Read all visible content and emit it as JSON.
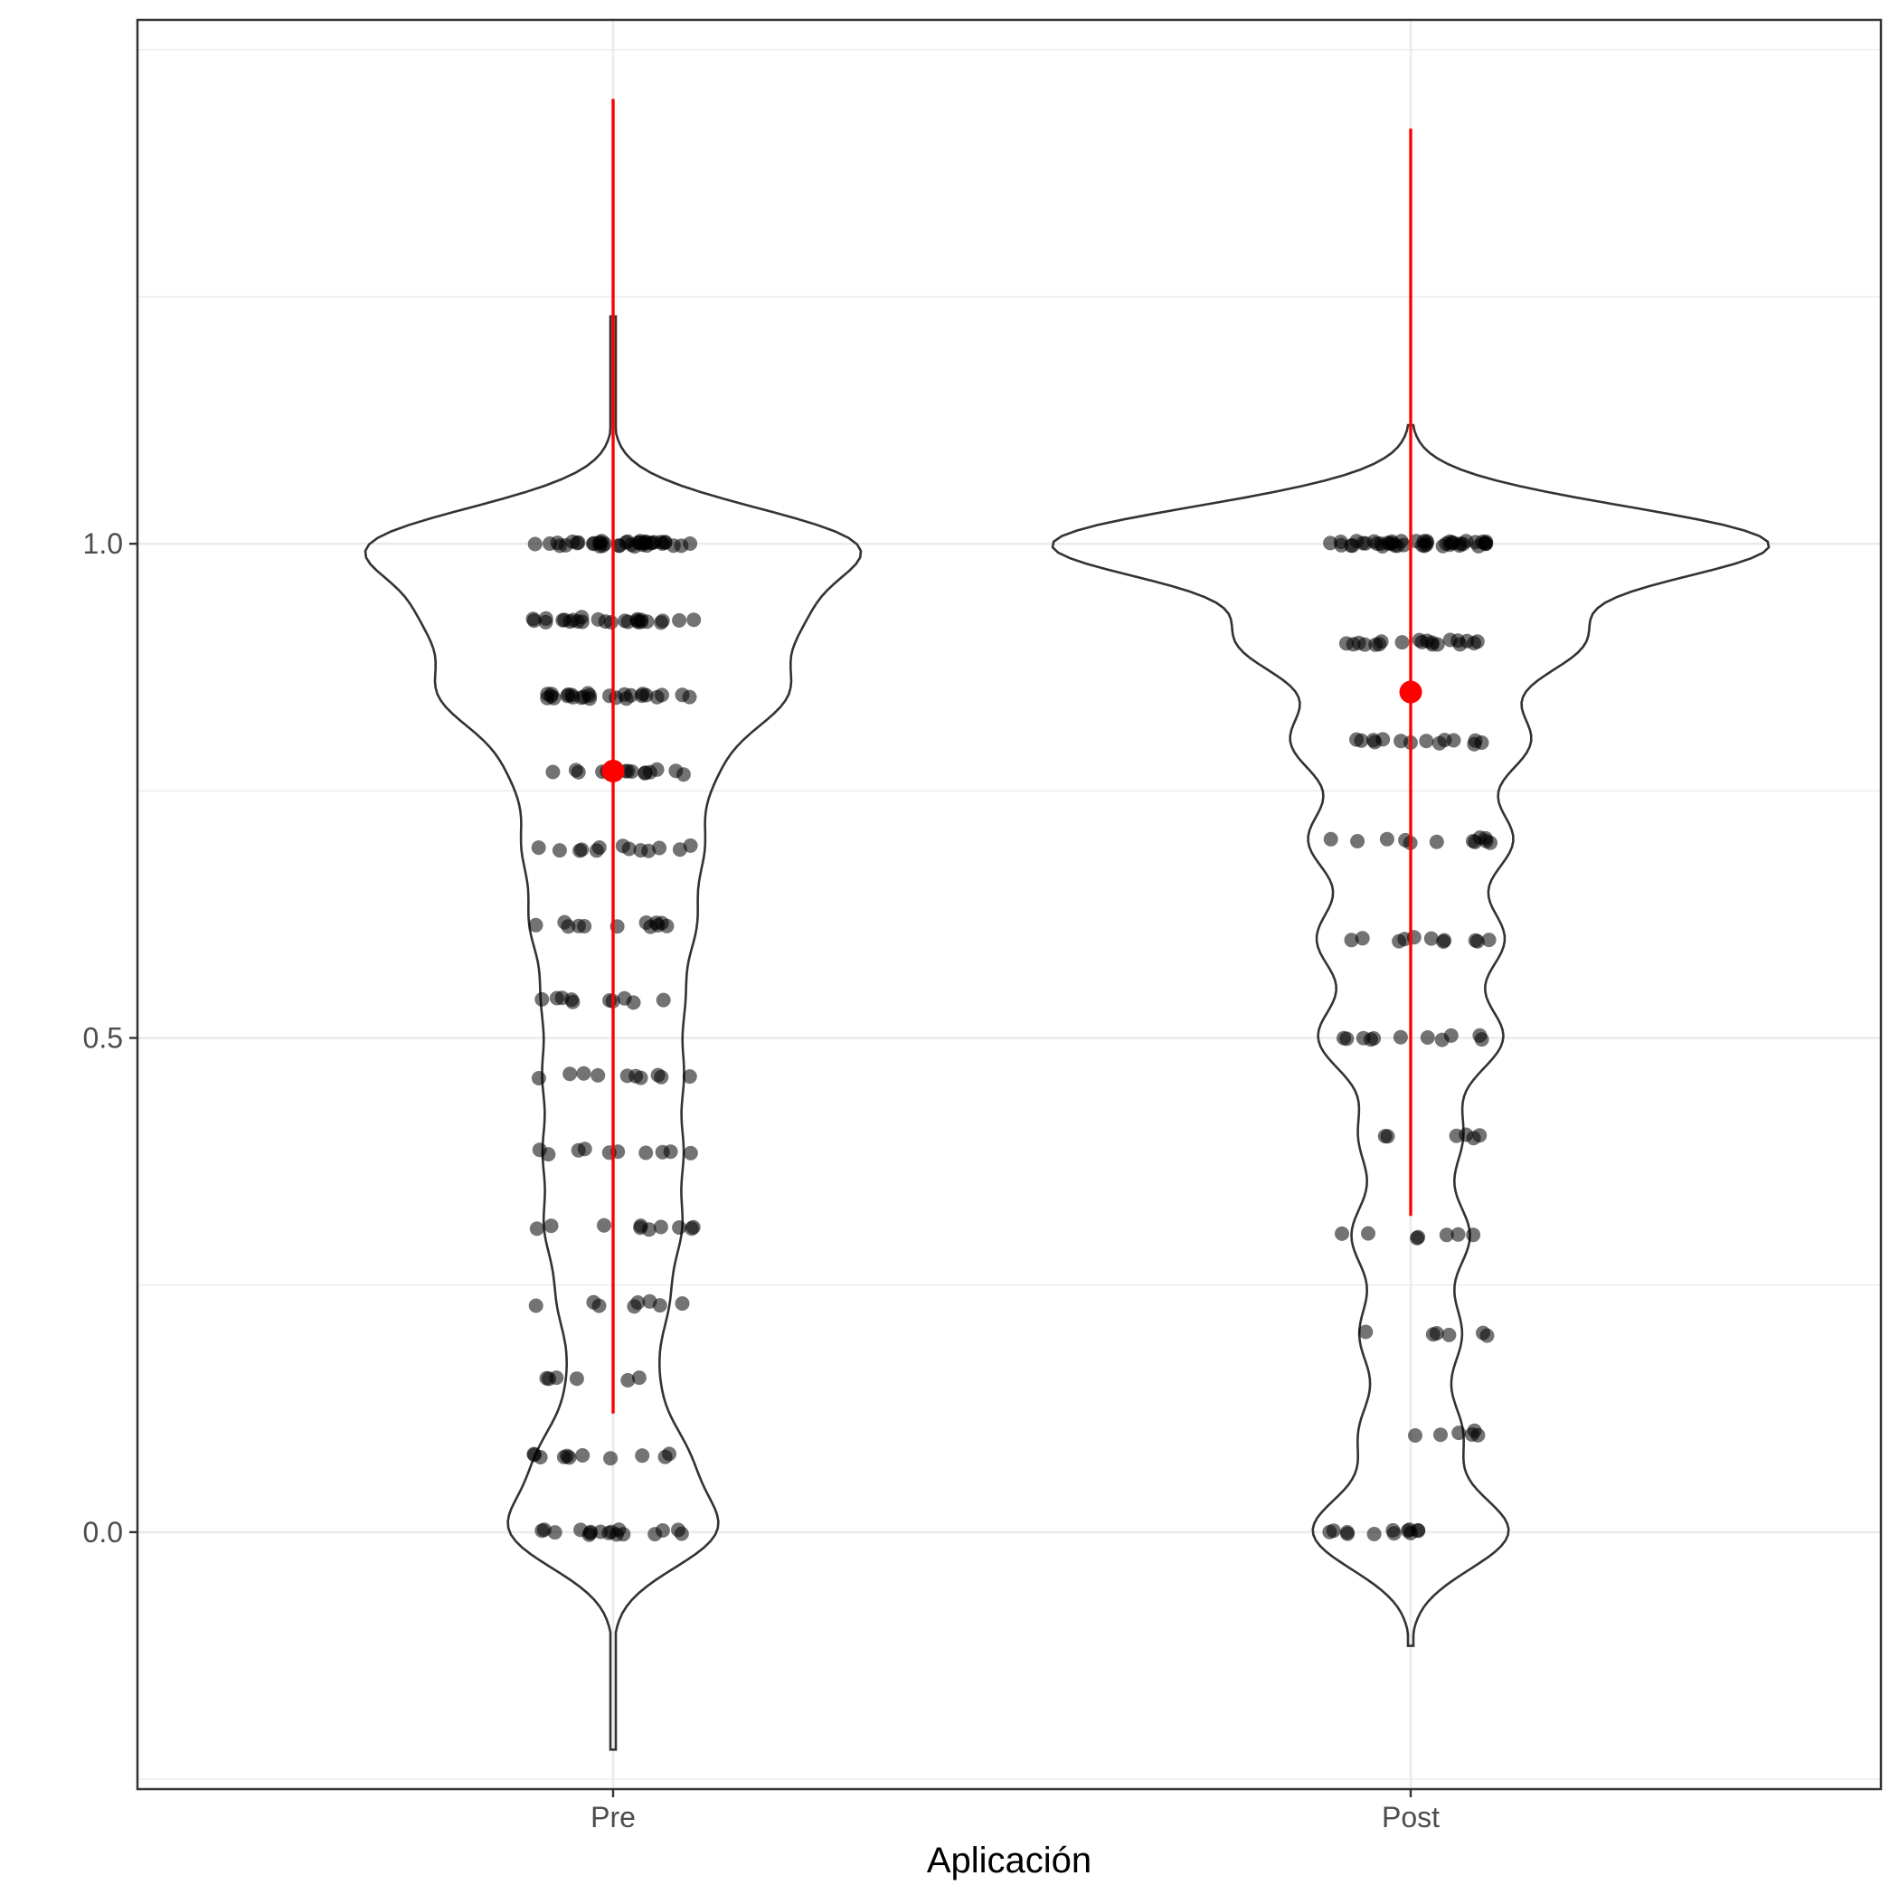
{
  "chart_data": {
    "type": "violin",
    "title": "",
    "xlabel": "Aplicación",
    "ylabel": "",
    "categories": [
      "Pre",
      "Post"
    ],
    "ylim": [
      -0.26,
      1.53
    ],
    "y_ticks": [
      0.0,
      0.5,
      1.0
    ],
    "y_tick_labels": [
      "0.0",
      "0.5",
      "1.0"
    ],
    "grid": true,
    "colors": {
      "points": "#000000",
      "summary": "#ff0000",
      "violin_outline": "#333333",
      "grid": "#ebebeb",
      "panel_border": "#333333"
    },
    "groups": [
      {
        "name": "Pre",
        "summary": {
          "mean": 0.77,
          "low": 0.12,
          "high": 1.45
        },
        "violin_range": [
          -0.22,
          1.23
        ],
        "levels": [
          {
            "y": 1.0,
            "count": 40
          },
          {
            "y": 0.923,
            "count": 26
          },
          {
            "y": 0.846,
            "count": 26
          },
          {
            "y": 0.769,
            "count": 14
          },
          {
            "y": 0.692,
            "count": 13
          },
          {
            "y": 0.615,
            "count": 12
          },
          {
            "y": 0.538,
            "count": 10
          },
          {
            "y": 0.462,
            "count": 10
          },
          {
            "y": 0.385,
            "count": 10
          },
          {
            "y": 0.308,
            "count": 10
          },
          {
            "y": 0.231,
            "count": 8
          },
          {
            "y": 0.154,
            "count": 6
          },
          {
            "y": 0.077,
            "count": 11
          },
          {
            "y": 0.0,
            "count": 17
          }
        ]
      },
      {
        "name": "Post",
        "summary": {
          "mean": 0.85,
          "low": 0.32,
          "high": 1.42
        },
        "violin_range": [
          -0.115,
          1.12
        ],
        "levels": [
          {
            "y": 1.0,
            "count": 44
          },
          {
            "y": 0.9,
            "count": 20
          },
          {
            "y": 0.8,
            "count": 14
          },
          {
            "y": 0.7,
            "count": 12
          },
          {
            "y": 0.6,
            "count": 11
          },
          {
            "y": 0.5,
            "count": 11
          },
          {
            "y": 0.4,
            "count": 6
          },
          {
            "y": 0.3,
            "count": 7
          },
          {
            "y": 0.2,
            "count": 6
          },
          {
            "y": 0.1,
            "count": 6
          },
          {
            "y": 0.0,
            "count": 12
          }
        ]
      }
    ]
  }
}
